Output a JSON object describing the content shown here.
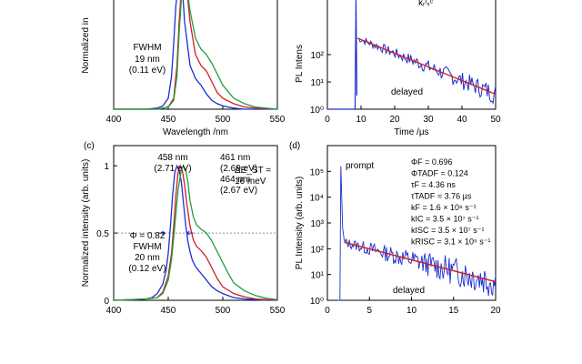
{
  "chart_data": [
    {
      "type": "line",
      "panel": "",
      "xlabel": "Wavelength /nm",
      "ylabel": "Normalized in",
      "xlim": [
        400,
        550
      ],
      "xticks": [
        "400",
        "450",
        "500",
        "550"
      ],
      "annotations": [
        {
          "text": "FWHM",
          "color": "#2030a0"
        },
        {
          "text": "19 nm",
          "color": "#2030a0"
        },
        {
          "text": "(0.11 eV)",
          "color": "#2030a0"
        }
      ],
      "series": [
        {
          "color": "#1a2fd0",
          "x": [
            400,
            430,
            440,
            445,
            450,
            453,
            455,
            457,
            460,
            463,
            465,
            470,
            475,
            480,
            485,
            490,
            495,
            500,
            510,
            520,
            530,
            550
          ],
          "y": [
            0,
            0,
            0.01,
            0.03,
            0.1,
            0.3,
            0.6,
            0.95,
            1.2,
            1.1,
            0.8,
            0.4,
            0.28,
            0.22,
            0.14,
            0.08,
            0.05,
            0.03,
            0.01,
            0,
            0,
            0
          ]
        },
        {
          "color": "#d02020",
          "x": [
            400,
            440,
            450,
            455,
            458,
            460,
            462,
            465,
            468,
            470,
            475,
            480,
            485,
            490,
            495,
            500,
            510,
            520,
            530,
            550
          ],
          "y": [
            0,
            0,
            0.02,
            0.1,
            0.4,
            0.8,
            1.1,
            1.2,
            1.0,
            0.8,
            0.5,
            0.4,
            0.35,
            0.25,
            0.15,
            0.1,
            0.05,
            0.02,
            0.01,
            0
          ]
        },
        {
          "color": "#20a040",
          "x": [
            400,
            440,
            450,
            455,
            458,
            460,
            462,
            465,
            468,
            470,
            475,
            480,
            485,
            490,
            495,
            500,
            510,
            520,
            530,
            550
          ],
          "y": [
            0,
            0,
            0.02,
            0.08,
            0.3,
            0.7,
            1.0,
            1.2,
            1.05,
            0.9,
            0.65,
            0.55,
            0.5,
            0.42,
            0.32,
            0.22,
            0.1,
            0.05,
            0.02,
            0
          ]
        }
      ]
    },
    {
      "type": "line",
      "panel": "",
      "xlabel": "Time /µs",
      "ylabel": "PL Intens",
      "xlim": [
        0,
        50
      ],
      "xticks": [
        "0",
        "10",
        "20",
        "30",
        "40",
        "50"
      ],
      "yticks": [
        "10²",
        "10¹",
        "10⁰"
      ],
      "annotations": [
        {
          "text": "delayed",
          "color": "#000000"
        },
        {
          "text": "kᵣᴵₛᶜ",
          "color": "#d02020"
        }
      ]
    },
    {
      "type": "line",
      "panel": "(c)",
      "xlabel": "",
      "ylabel": "Normalized intensity (arb. units)",
      "xlim": [
        400,
        550
      ],
      "ylim": [
        0,
        1.15
      ],
      "xticks": [
        "400",
        "450",
        "500",
        "550"
      ],
      "yticks": [
        "0",
        "0.5",
        "1"
      ],
      "annotations": [
        {
          "text": "458 nm",
          "color": "#2030a0"
        },
        {
          "text": "(2.71 eV)",
          "color": "#2030a0"
        },
        {
          "text": "461 nm",
          "color": "#d02020"
        },
        {
          "text": "(2.69 eV)",
          "color": "#d02020"
        },
        {
          "text": "464 nm",
          "color": "#20a040"
        },
        {
          "text": "(2.67 eV)",
          "color": "#20a040"
        },
        {
          "text": "ΔE_ST =",
          "color": "#000000"
        },
        {
          "text": "16 meV",
          "color": "#000000"
        },
        {
          "text": "Φ = 0.82",
          "color": "#2030a0"
        },
        {
          "text": "FWHM",
          "color": "#2030a0"
        },
        {
          "text": "20 nm",
          "color": "#2030a0"
        },
        {
          "text": "(0.12 eV)",
          "color": "#2030a0"
        }
      ],
      "series": [
        {
          "color": "#1a2fd0",
          "x": [
            400,
            420,
            430,
            435,
            440,
            445,
            448,
            450,
            452,
            454,
            456,
            458,
            460,
            462,
            464,
            466,
            468,
            470,
            472,
            475,
            480,
            485,
            490,
            495,
            500,
            510,
            520,
            530,
            540,
            550
          ],
          "y": [
            0,
            0.005,
            0.01,
            0.02,
            0.05,
            0.12,
            0.22,
            0.35,
            0.55,
            0.78,
            0.95,
            1.0,
            0.97,
            0.88,
            0.72,
            0.56,
            0.44,
            0.36,
            0.3,
            0.25,
            0.2,
            0.15,
            0.1,
            0.07,
            0.05,
            0.02,
            0.01,
            0.005,
            0,
            0
          ]
        },
        {
          "color": "#d02020",
          "x": [
            400,
            430,
            440,
            445,
            450,
            453,
            455,
            457,
            459,
            461,
            463,
            465,
            467,
            470,
            473,
            476,
            480,
            485,
            490,
            495,
            500,
            510,
            520,
            530,
            540,
            550
          ],
          "y": [
            0,
            0.01,
            0.02,
            0.06,
            0.18,
            0.35,
            0.55,
            0.78,
            0.95,
            1.0,
            0.96,
            0.86,
            0.72,
            0.55,
            0.45,
            0.4,
            0.37,
            0.32,
            0.24,
            0.16,
            0.1,
            0.05,
            0.025,
            0.01,
            0.005,
            0
          ]
        },
        {
          "color": "#20a040",
          "x": [
            400,
            430,
            440,
            445,
            450,
            453,
            456,
            459,
            462,
            464,
            466,
            468,
            470,
            473,
            476,
            480,
            485,
            490,
            495,
            500,
            505,
            510,
            520,
            530,
            540,
            550
          ],
          "y": [
            0,
            0.01,
            0.02,
            0.05,
            0.15,
            0.3,
            0.55,
            0.82,
            0.97,
            1.0,
            0.97,
            0.88,
            0.74,
            0.62,
            0.56,
            0.53,
            0.5,
            0.44,
            0.36,
            0.28,
            0.2,
            0.13,
            0.07,
            0.035,
            0.015,
            0.005
          ]
        }
      ]
    },
    {
      "type": "line",
      "panel": "(d)",
      "xlabel": "",
      "ylabel": "PL Intensity (arb. units)",
      "xlim": [
        0,
        20
      ],
      "ylim": [
        1,
        1000000
      ],
      "yscale": "log",
      "xticks": [
        "0",
        "5",
        "10",
        "15",
        "20"
      ],
      "yticks": [
        "10⁵",
        "10⁴",
        "10³",
        "10²",
        "10¹",
        "10⁰"
      ],
      "annotations": [
        {
          "text": "prompt",
          "color": "#000000"
        },
        {
          "text": "delayed",
          "color": "#000000"
        }
      ],
      "parameters": [
        {
          "text": "ΦF = 0.696",
          "color": "#000000"
        },
        {
          "text": "ΦTADF = 0.124",
          "color": "#000000"
        },
        {
          "text": "τF = 4.36 ns",
          "color": "#000000"
        },
        {
          "text": "τTADF = 3.76 µs",
          "color": "#000000"
        },
        {
          "text": "kF = 1.6 × 10⁸ s⁻¹",
          "color": "#000000"
        },
        {
          "text": "kIC = 3.5 × 10⁷ s⁻¹",
          "color": "#000000"
        },
        {
          "text": "kISC = 3.5 × 10⁷ s⁻¹",
          "color": "#000000"
        },
        {
          "text": "kRISC = 3.1 × 10⁵ s⁻¹",
          "color": "#d02020"
        }
      ],
      "series": [
        {
          "color": "#1a2fd0",
          "kind": "noisy-decay"
        },
        {
          "color": "#d02020",
          "kind": "fit"
        }
      ]
    }
  ]
}
